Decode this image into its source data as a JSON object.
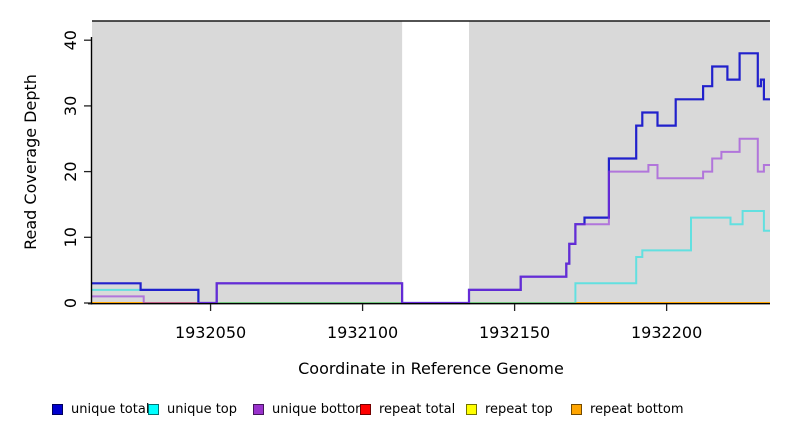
{
  "chart_data": {
    "type": "line",
    "subtype": "step",
    "title": "",
    "xlabel": "Coordinate in Reference Genome",
    "ylabel": "Read Coverage Depth",
    "xlim": [
      1932011,
      1932234
    ],
    "ylim": [
      0,
      43
    ],
    "x_ticks": [
      "1932050",
      "1932100",
      "1932150",
      "1932200"
    ],
    "x_tick_values": [
      1932050,
      1932100,
      1932150,
      1932200
    ],
    "y_ticks": [
      "0",
      "10",
      "20",
      "30",
      "40"
    ],
    "y_tick_values": [
      0,
      10,
      20,
      30,
      40
    ],
    "grid": false,
    "panel_bg": "#d9d9d9",
    "masked_region": {
      "start": 1932113,
      "end": 1932135,
      "color": "#ffffff"
    },
    "legend_position": "bottom",
    "series": [
      {
        "name": "repeat total",
        "color": "#ff0000",
        "opacity": 1,
        "width": 2,
        "steps": [
          [
            1932011,
            0
          ]
        ]
      },
      {
        "name": "repeat top",
        "color": "#ffff00",
        "opacity": 1,
        "width": 2,
        "steps": [
          [
            1932011,
            0
          ]
        ]
      },
      {
        "name": "repeat bottom",
        "color": "#ffa500",
        "opacity": 1,
        "width": 2,
        "steps": [
          [
            1932011,
            0
          ]
        ]
      },
      {
        "name": "unique top",
        "color": "#00e5e5",
        "opacity": 0.55,
        "width": 2,
        "steps": [
          [
            1932011,
            2
          ],
          [
            1932046,
            0
          ],
          [
            1932170,
            3
          ],
          [
            1932190,
            7
          ],
          [
            1932192,
            8
          ],
          [
            1932208,
            13
          ],
          [
            1932221,
            12
          ],
          [
            1932225,
            14
          ],
          [
            1932232,
            11
          ]
        ]
      },
      {
        "name": "unique total",
        "color": "#2121cc",
        "opacity": 1,
        "width": 2.2,
        "steps": [
          [
            1932011,
            3
          ],
          [
            1932027,
            2
          ],
          [
            1932046,
            0
          ],
          [
            1932052,
            3
          ],
          [
            1932113,
            0
          ],
          [
            1932135,
            2
          ],
          [
            1932152,
            4
          ],
          [
            1932167,
            6
          ],
          [
            1932168,
            9
          ],
          [
            1932170,
            12
          ],
          [
            1932173,
            13
          ],
          [
            1932181,
            22
          ],
          [
            1932190,
            27
          ],
          [
            1932192,
            29
          ],
          [
            1932197,
            27
          ],
          [
            1932203,
            31
          ],
          [
            1932212,
            33
          ],
          [
            1932215,
            36
          ],
          [
            1932220,
            34
          ],
          [
            1932224,
            38
          ],
          [
            1932230,
            33
          ],
          [
            1932231,
            34
          ],
          [
            1932232,
            31
          ]
        ]
      },
      {
        "name": "unique bottom",
        "color": "#9632dc",
        "opacity": 0.6,
        "width": 2,
        "steps": [
          [
            1932011,
            1
          ],
          [
            1932028,
            0
          ],
          [
            1932052,
            3
          ],
          [
            1932113,
            0
          ],
          [
            1932135,
            2
          ],
          [
            1932152,
            4
          ],
          [
            1932167,
            6
          ],
          [
            1932168,
            9
          ],
          [
            1932170,
            12
          ],
          [
            1932181,
            20
          ],
          [
            1932194,
            21
          ],
          [
            1932197,
            19
          ],
          [
            1932212,
            20
          ],
          [
            1932215,
            22
          ],
          [
            1932218,
            23
          ],
          [
            1932224,
            25
          ],
          [
            1932230,
            20
          ],
          [
            1932232,
            21
          ]
        ]
      }
    ]
  },
  "legend": {
    "items": [
      {
        "label": "unique total",
        "color": "#0000cd"
      },
      {
        "label": "unique top",
        "color": "#00ffff"
      },
      {
        "label": "unique bottom",
        "color": "#9932cc"
      },
      {
        "label": "repeat total",
        "color": "#ff0000"
      },
      {
        "label": "repeat top",
        "color": "#ffff00"
      },
      {
        "label": "repeat bottom",
        "color": "#ffa500"
      }
    ]
  }
}
